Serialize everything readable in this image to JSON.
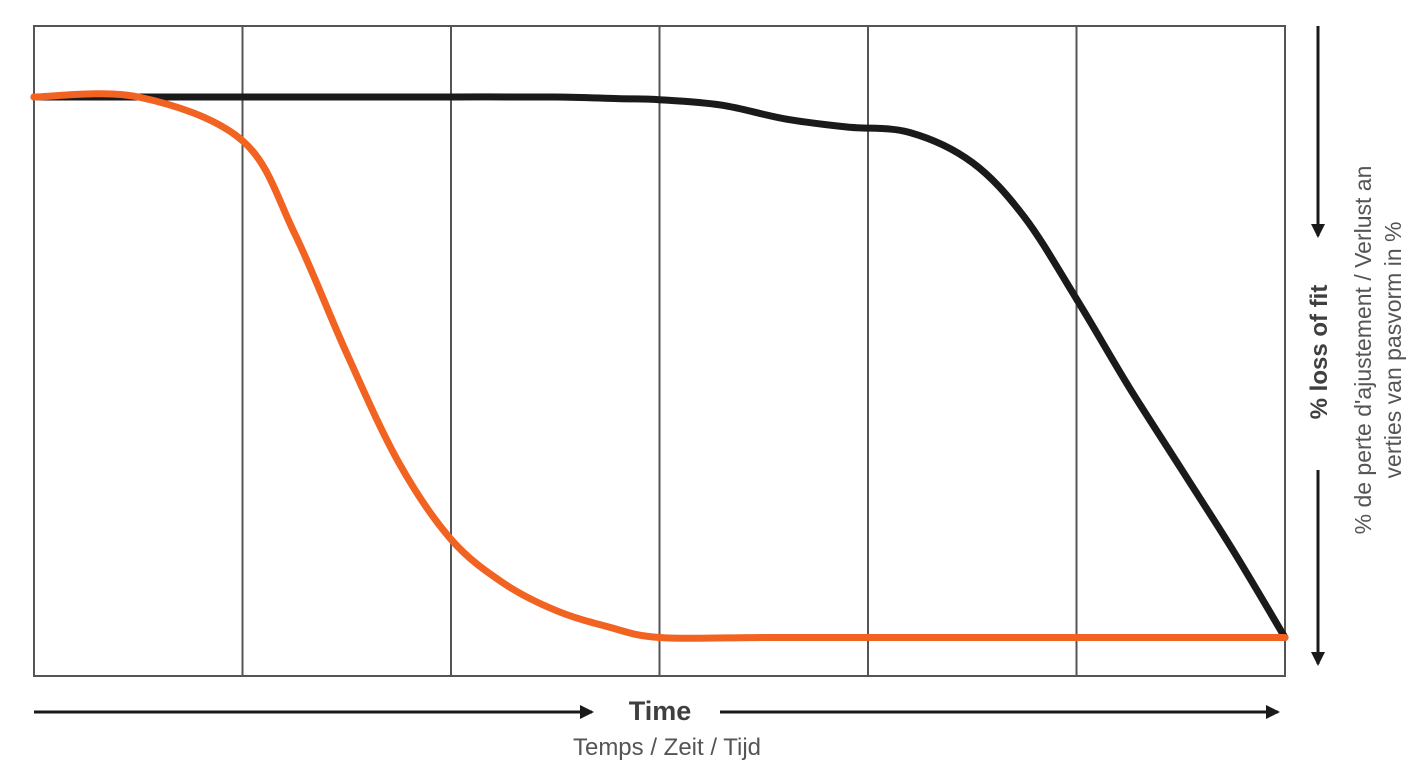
{
  "chart_data": {
    "type": "line",
    "title": "",
    "xlabel": "Time",
    "xlabel_secondary": "Temps / Zeit / Tijd",
    "ylabel": "% loss of fit",
    "ylabel_secondary_line1": "% de perte d'ajustement / Verlust an",
    "ylabel_secondary_line2": "verties van pasvorm in %",
    "x_range": [
      0,
      6
    ],
    "y_range": [
      0,
      100
    ],
    "y_direction": "increasing-downward",
    "grid": {
      "vertical": true,
      "horizontal": false,
      "x_divisions": 6
    },
    "legend": "none",
    "tick_labels": "none",
    "series": [
      {
        "color": "#1a1a1a",
        "x": [
          0,
          0.5,
          1.0,
          1.5,
          2.0,
          2.5,
          2.8,
          3.0,
          3.3,
          3.6,
          3.9,
          4.2,
          4.5,
          4.75,
          5.0,
          5.25,
          5.5,
          5.75,
          6.0
        ],
        "y": [
          0,
          0,
          0,
          0,
          0,
          0,
          0.3,
          0.5,
          1.5,
          4,
          5.5,
          6.5,
          12,
          22,
          37,
          53,
          68,
          83,
          99
        ]
      },
      {
        "color": "#f26322",
        "x": [
          0,
          0.5,
          1.0,
          1.25,
          1.5,
          1.75,
          2.0,
          2.25,
          2.5,
          2.75,
          3.0,
          3.5,
          4.0,
          4.5,
          5.0,
          5.5,
          6.0
        ],
        "y": [
          0,
          0,
          8,
          25,
          47,
          67,
          81,
          89,
          94,
          97,
          99,
          99,
          99,
          99,
          99,
          99,
          99
        ]
      }
    ]
  }
}
